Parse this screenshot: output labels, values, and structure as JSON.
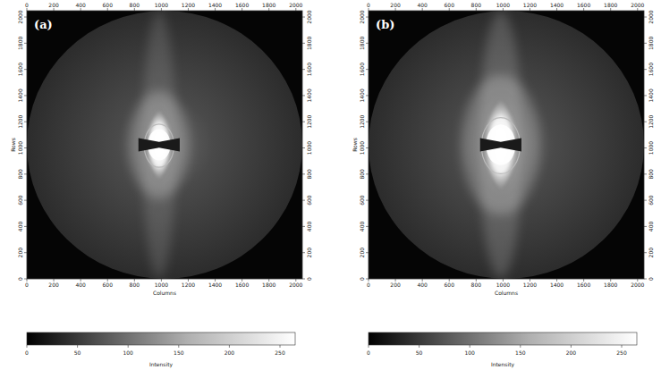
{
  "chart_data": [
    {
      "type": "image",
      "title": "(a)",
      "x_label": "Columns",
      "y_label": "Rows",
      "xlim": [
        0,
        2048
      ],
      "ylim": [
        0,
        2048
      ],
      "xticks": [
        0,
        200,
        400,
        600,
        800,
        1000,
        1200,
        1400,
        1600,
        1800,
        2000
      ],
      "yticks": [
        0,
        200,
        400,
        600,
        800,
        1000,
        1200,
        1400,
        1600,
        1800,
        2000
      ],
      "colorbar": {
        "label": "Intensity",
        "range": [
          0,
          265
        ],
        "ticks": [
          0,
          50,
          100,
          150,
          200,
          250
        ]
      }
    },
    {
      "type": "image",
      "title": "(b)",
      "x_label": "Columns",
      "y_label": "Rows",
      "xlim": [
        0,
        2048
      ],
      "ylim": [
        0,
        2048
      ],
      "xticks": [
        0,
        200,
        400,
        600,
        800,
        1000,
        1200,
        1400,
        1600,
        1800,
        2000
      ],
      "yticks": [
        0,
        200,
        400,
        600,
        800,
        1000,
        1200,
        1400,
        1600,
        1800,
        2000
      ],
      "colorbar": {
        "label": "Intensity",
        "range": [
          0,
          265
        ],
        "ticks": [
          0,
          50,
          100,
          150,
          200,
          250
        ]
      }
    }
  ]
}
